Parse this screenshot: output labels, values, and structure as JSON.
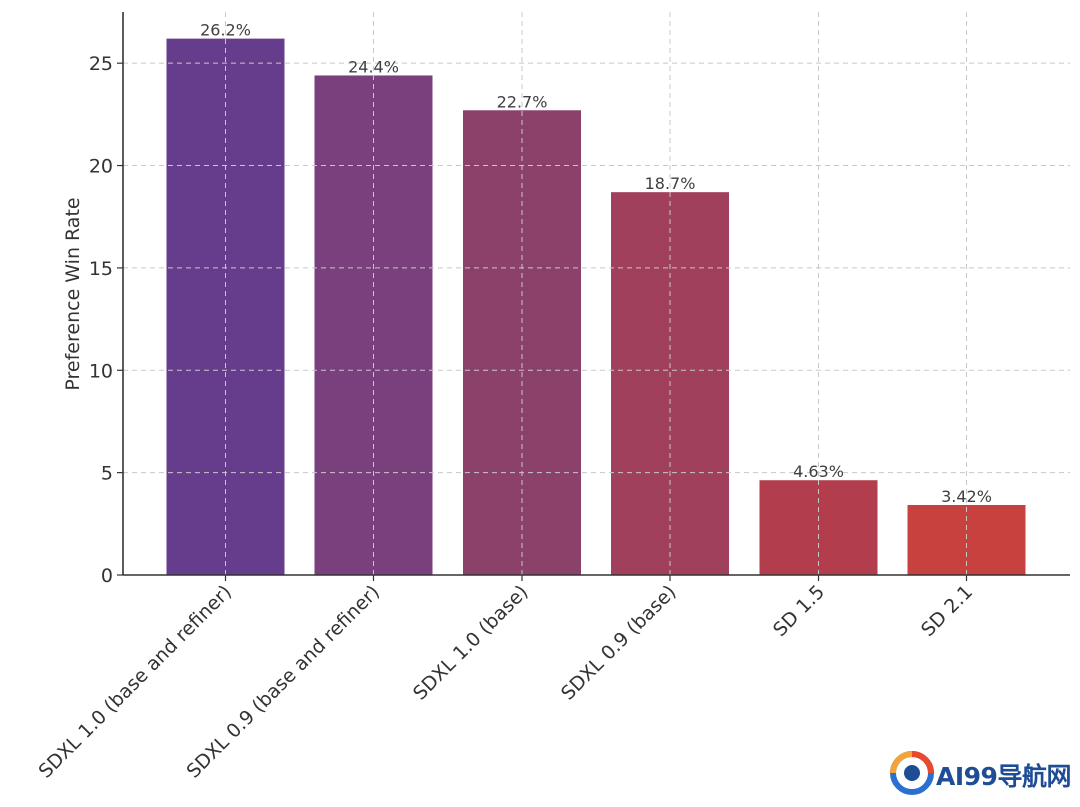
{
  "chart_data": {
    "type": "bar",
    "title": "",
    "xlabel": "",
    "ylabel": "Preference Win Rate",
    "categories": [
      "SDXL 1.0 (base and refiner)",
      "SDXL 0.9 (base and refiner)",
      "SDXL 1.0 (base)",
      "SDXL 0.9 (base)",
      "SD 1.5",
      "SD 2.1"
    ],
    "values": [
      26.2,
      24.4,
      22.7,
      18.7,
      4.63,
      3.42
    ],
    "value_labels": [
      "26.2%",
      "24.4%",
      "22.7%",
      "18.7%",
      "4.63%",
      "3.42%"
    ],
    "bar_colors": [
      "#663d8c",
      "#7a3f7d",
      "#8c416b",
      "#a0405c",
      "#b23d4d",
      "#c7413f"
    ],
    "y_ticks": [
      0,
      5,
      10,
      15,
      20,
      25
    ],
    "ylim": [
      0,
      27.5
    ],
    "grid": true,
    "grid_style": "dashed"
  },
  "watermark": {
    "text": "AI99导航网",
    "color": "#1e4d96"
  }
}
